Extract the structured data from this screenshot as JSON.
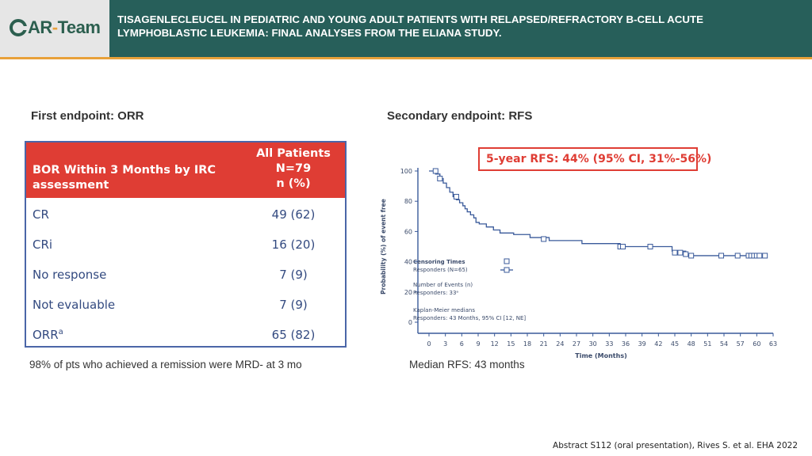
{
  "header": {
    "logo_letter": "C",
    "logo_main": "AR",
    "logo_dash": "-",
    "logo_team": "Team",
    "title_line1": "TISAGENLECLEUCEL IN PEDIATRIC AND YOUNG ADULT PATIENTS WITH RELAPSED/REFRACTORY B-CELL ACUTE",
    "title_line2": "LYMPHOBLASTIC LEUKEMIA: FINAL ANALYSES FROM THE ELIANA STUDY."
  },
  "left": {
    "heading": "First endpoint: ORR",
    "table": {
      "head_left_line1": "BOR Within 3 Months by IRC",
      "head_left_line2": "assessment",
      "head_right_line1": "All Patients",
      "head_right_line2": "N=79",
      "head_right_line3": "n (%)",
      "rows": [
        {
          "label": "CR",
          "sup": "",
          "value": "49 (62)"
        },
        {
          "label": "CRi",
          "sup": "",
          "value": "16 (20)"
        },
        {
          "label": "No response",
          "sup": "",
          "value": "7 (9)"
        },
        {
          "label": "Not evaluable",
          "sup": "",
          "value": "7 (9)"
        },
        {
          "label": "ORR",
          "sup": "a",
          "value": "65 (82)"
        }
      ]
    },
    "note": "98% of pts who achieved a remission were MRD- at 3 mo"
  },
  "right": {
    "heading": "Secondary endpoint: RFS",
    "highlight": "5-year RFS: 44% (95% CI, 31%-56%)",
    "note": "Median RFS: 43 months"
  },
  "chart_data": {
    "type": "line",
    "title": "",
    "xlabel": "Time (Months)",
    "ylabel": "Probability (%) of event free",
    "xlim": [
      0,
      63
    ],
    "ylim": [
      0,
      100
    ],
    "xticks": [
      0,
      3,
      6,
      9,
      12,
      15,
      18,
      21,
      24,
      27,
      30,
      33,
      36,
      39,
      42,
      45,
      48,
      51,
      54,
      57,
      60,
      63
    ],
    "yticks": [
      0,
      20,
      40,
      60,
      80,
      100
    ],
    "series": [
      {
        "name": "Responders (N=65)",
        "style": "step",
        "x": [
          0,
          1.2,
          2.0,
          2.6,
          3.2,
          3.8,
          4.4,
          5.0,
          5.6,
          6.2,
          6.6,
          7.0,
          7.6,
          8.2,
          8.6,
          9.2,
          10.5,
          11.8,
          13.0,
          15.5,
          18.5,
          22.0,
          28.0,
          35.0,
          44.5,
          47.0,
          61.0
        ],
        "y": [
          100,
          98,
          95,
          92,
          89,
          86,
          83,
          81,
          79,
          77,
          75,
          73,
          71,
          69,
          66,
          65,
          63,
          61,
          59,
          58,
          56,
          54,
          52,
          50,
          47,
          44,
          44
        ]
      }
    ],
    "censored": {
      "x": [
        1.2,
        2.0,
        5.0,
        21.0,
        35.0,
        35.5,
        40.5,
        45.0,
        46.0,
        47.0,
        48.0,
        53.5,
        56.5,
        58.5,
        59.0,
        59.5,
        60.0,
        60.5,
        61.5
      ],
      "y": [
        100,
        95,
        83,
        55,
        50,
        50,
        50,
        46,
        46,
        45,
        44,
        44,
        44,
        44,
        44,
        44,
        44,
        44,
        44
      ]
    },
    "legend": {
      "title": "Censoring Times",
      "entry": "Responders (N=65)"
    },
    "annotations": [
      "Number of Events (n)",
      "Responders: 33ᵃ",
      "Kaplan-Meier medians",
      "Responders: 43 Months, 95% CI [12, NE]"
    ]
  },
  "footer": "Abstract S112 (oral presentation), Rives S. et al. EHA 2022"
}
